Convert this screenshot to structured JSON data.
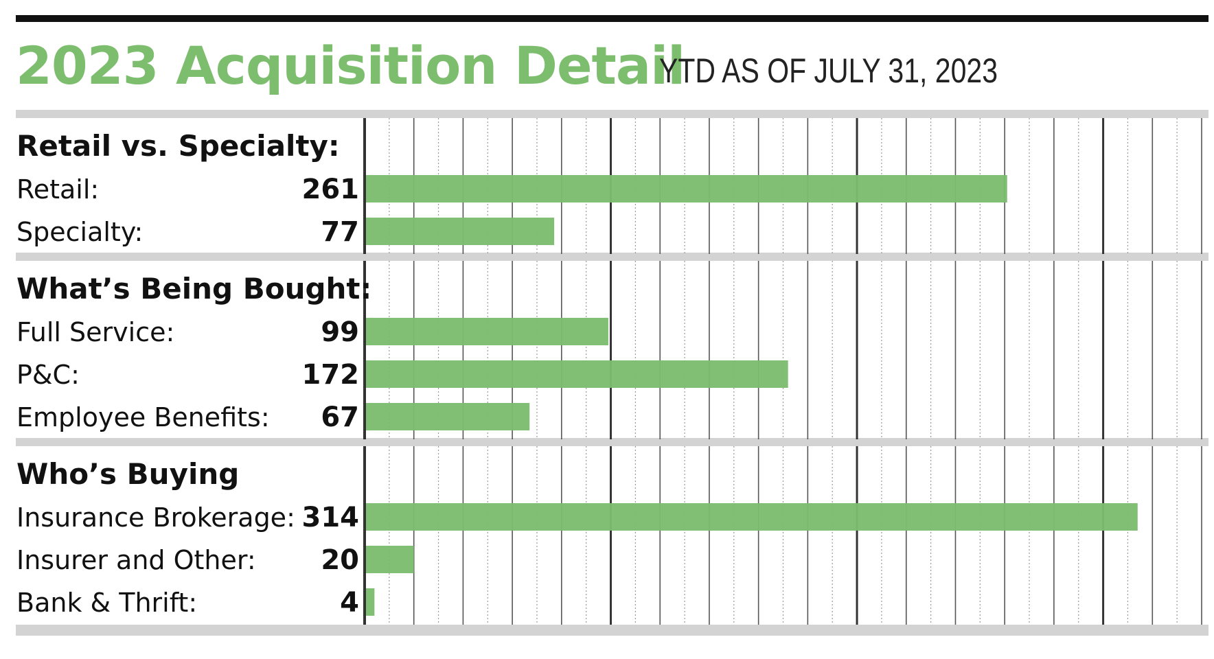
{
  "header": {
    "title": "2023 Acquisition Detail",
    "subtitle": "YTD AS OF JULY 31, 2023"
  },
  "colors": {
    "bar": "#7cbd6e",
    "title": "#7cbd6e",
    "band": "#d3d3d3",
    "axis": "#333333"
  },
  "chart_data": {
    "type": "bar",
    "orientation": "horizontal",
    "xlim": [
      0,
      340
    ],
    "grid": true,
    "groups": [
      {
        "title": "Retail vs. Specialty:",
        "rows": [
          {
            "label": "Retail:",
            "value": 261,
            "value_label": "261"
          },
          {
            "label": "Specialty:",
            "value": 77,
            "value_label": "77"
          }
        ]
      },
      {
        "title": "What’s Being Bought:",
        "rows": [
          {
            "label": "Full Service:",
            "value": 99,
            "value_label": "99"
          },
          {
            "label": "P&C:",
            "value": 172,
            "value_label": "172"
          },
          {
            "label": "Employee Benefits:",
            "value": 67,
            "value_label": "67"
          }
        ]
      },
      {
        "title": "Who’s Buying",
        "rows": [
          {
            "label": "Insurance Brokerage:",
            "value": 314,
            "value_label": "314"
          },
          {
            "label": "Insurer and Other:",
            "value": 20,
            "value_label": "20"
          },
          {
            "label": "Bank & Thrift:",
            "value": 4,
            "value_label": "4"
          }
        ]
      }
    ]
  }
}
